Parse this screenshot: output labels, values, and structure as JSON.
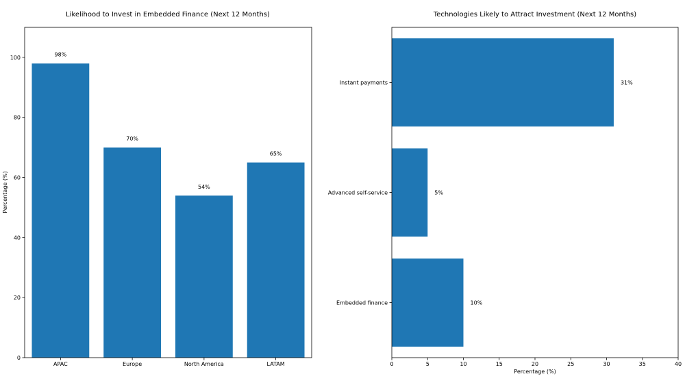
{
  "chart_data": [
    {
      "type": "bar",
      "title": "Likelihood to Invest in Embedded Finance (Next 12 Months)",
      "xlabel": "",
      "ylabel": "Percentage (%)",
      "categories": [
        "APAC",
        "Europe",
        "North America",
        "LATAM"
      ],
      "values": [
        98,
        70,
        54,
        65
      ],
      "value_labels": [
        "98%",
        "70%",
        "54%",
        "65%"
      ],
      "ylim": [
        0,
        110
      ],
      "yticks": [
        0,
        20,
        40,
        60,
        80,
        100
      ],
      "color": "#1f77b4"
    },
    {
      "type": "bar",
      "orientation": "horizontal",
      "title": "Technologies Likely to Attract Investment (Next 12 Months)",
      "xlabel": "Percentage (%)",
      "ylabel": "",
      "categories": [
        "Embedded finance",
        "Advanced self-service",
        "Instant payments"
      ],
      "values": [
        10,
        5,
        31
      ],
      "value_labels": [
        "10%",
        "5%",
        "31%"
      ],
      "xlim": [
        0,
        40
      ],
      "xticks": [
        0,
        5,
        10,
        15,
        20,
        25,
        30,
        35,
        40
      ],
      "color": "#1f77b4"
    }
  ]
}
